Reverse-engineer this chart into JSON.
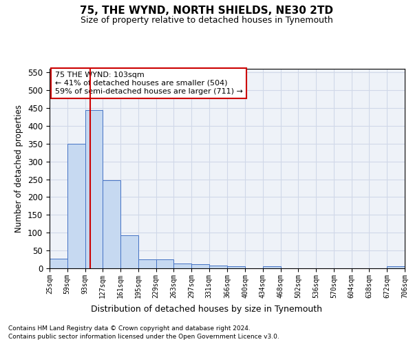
{
  "title": "75, THE WYND, NORTH SHIELDS, NE30 2TD",
  "subtitle": "Size of property relative to detached houses in Tynemouth",
  "xlabel": "Distribution of detached houses by size in Tynemouth",
  "ylabel": "Number of detached properties",
  "footnote1": "Contains HM Land Registry data © Crown copyright and database right 2024.",
  "footnote2": "Contains public sector information licensed under the Open Government Licence v3.0.",
  "bar_left_edges": [
    25,
    59,
    93,
    127,
    161,
    195,
    229,
    263,
    297,
    331,
    366,
    400,
    434,
    468,
    502,
    536,
    570,
    604,
    638,
    672
  ],
  "bar_heights": [
    27,
    350,
    445,
    248,
    93,
    25,
    25,
    14,
    11,
    8,
    6,
    0,
    5,
    0,
    0,
    0,
    0,
    0,
    0,
    5
  ],
  "bin_width": 34,
  "bar_color": "#c6d9f1",
  "bar_edge_color": "#4472c4",
  "property_line_x": 103,
  "property_line_color": "#cc0000",
  "ylim": [
    0,
    560
  ],
  "yticks": [
    0,
    50,
    100,
    150,
    200,
    250,
    300,
    350,
    400,
    450,
    500,
    550
  ],
  "xlim": [
    25,
    706
  ],
  "xtick_labels": [
    "25sqm",
    "59sqm",
    "93sqm",
    "127sqm",
    "161sqm",
    "195sqm",
    "229sqm",
    "263sqm",
    "297sqm",
    "331sqm",
    "366sqm",
    "400sqm",
    "434sqm",
    "468sqm",
    "502sqm",
    "536sqm",
    "570sqm",
    "604sqm",
    "638sqm",
    "672sqm",
    "706sqm"
  ],
  "xtick_positions": [
    25,
    59,
    93,
    127,
    161,
    195,
    229,
    263,
    297,
    331,
    366,
    400,
    434,
    468,
    502,
    536,
    570,
    604,
    638,
    672,
    706
  ],
  "annotation_text": "75 THE WYND: 103sqm\n← 41% of detached houses are smaller (504)\n59% of semi-detached houses are larger (711) →",
  "annotation_box_color": "#ffffff",
  "annotation_box_edge_color": "#cc0000",
  "grid_color": "#d0d8e8",
  "background_color": "#eef2f8"
}
